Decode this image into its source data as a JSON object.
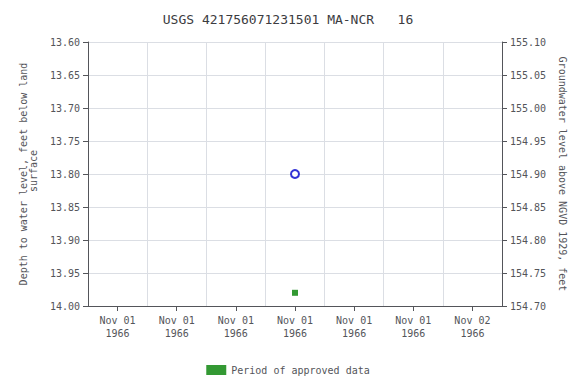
{
  "chart_data": {
    "type": "scatter",
    "title": "USGS 421756071231501 MA-NCR   16",
    "categories": [
      "Nov 01\n1966",
      "Nov 01\n1966",
      "Nov 01\n1966",
      "Nov 01\n1966",
      "Nov 01\n1966",
      "Nov 01\n1966",
      "Nov 02\n1966"
    ],
    "y_label": "Depth to water level, feet below land\n surface",
    "y2_label": "Groundwater level above NGVD 1929, feet",
    "series": [
      {
        "values": [
          null,
          null,
          null,
          13.8,
          null,
          null,
          null
        ],
        "color": "#0000cc",
        "marker": "open_circle"
      },
      {
        "name": "Period of approved data",
        "values": [
          null,
          null,
          null,
          13.98,
          null,
          null,
          null
        ],
        "color": "#008000",
        "marker": "square"
      }
    ],
    "ylim": [
      14.0,
      13.6
    ],
    "yticks": [
      {
        "value": 13.6,
        "label": "13.60"
      },
      13.65,
      {
        "value": 13.7,
        "label": "13.70"
      },
      13.75,
      {
        "value": 13.8,
        "label": "13.80"
      },
      13.85,
      {
        "value": 13.9,
        "label": "13.90"
      },
      13.95,
      {
        "value": 14.0,
        "label": "14.00"
      }
    ],
    "y2lim": [
      154.7,
      155.1
    ],
    "y2ticks": [
      {
        "value": 155.1,
        "label": "155.10"
      },
      155.05,
      {
        "value": 155.0,
        "label": "155.00"
      },
      154.95,
      {
        "value": 154.9,
        "label": "154.90"
      },
      154.85,
      {
        "value": 154.8,
        "label": "154.80"
      },
      154.75,
      {
        "value": 154.7,
        "label": "154.70"
      }
    ],
    "grid": true,
    "legend": "bottom"
  }
}
